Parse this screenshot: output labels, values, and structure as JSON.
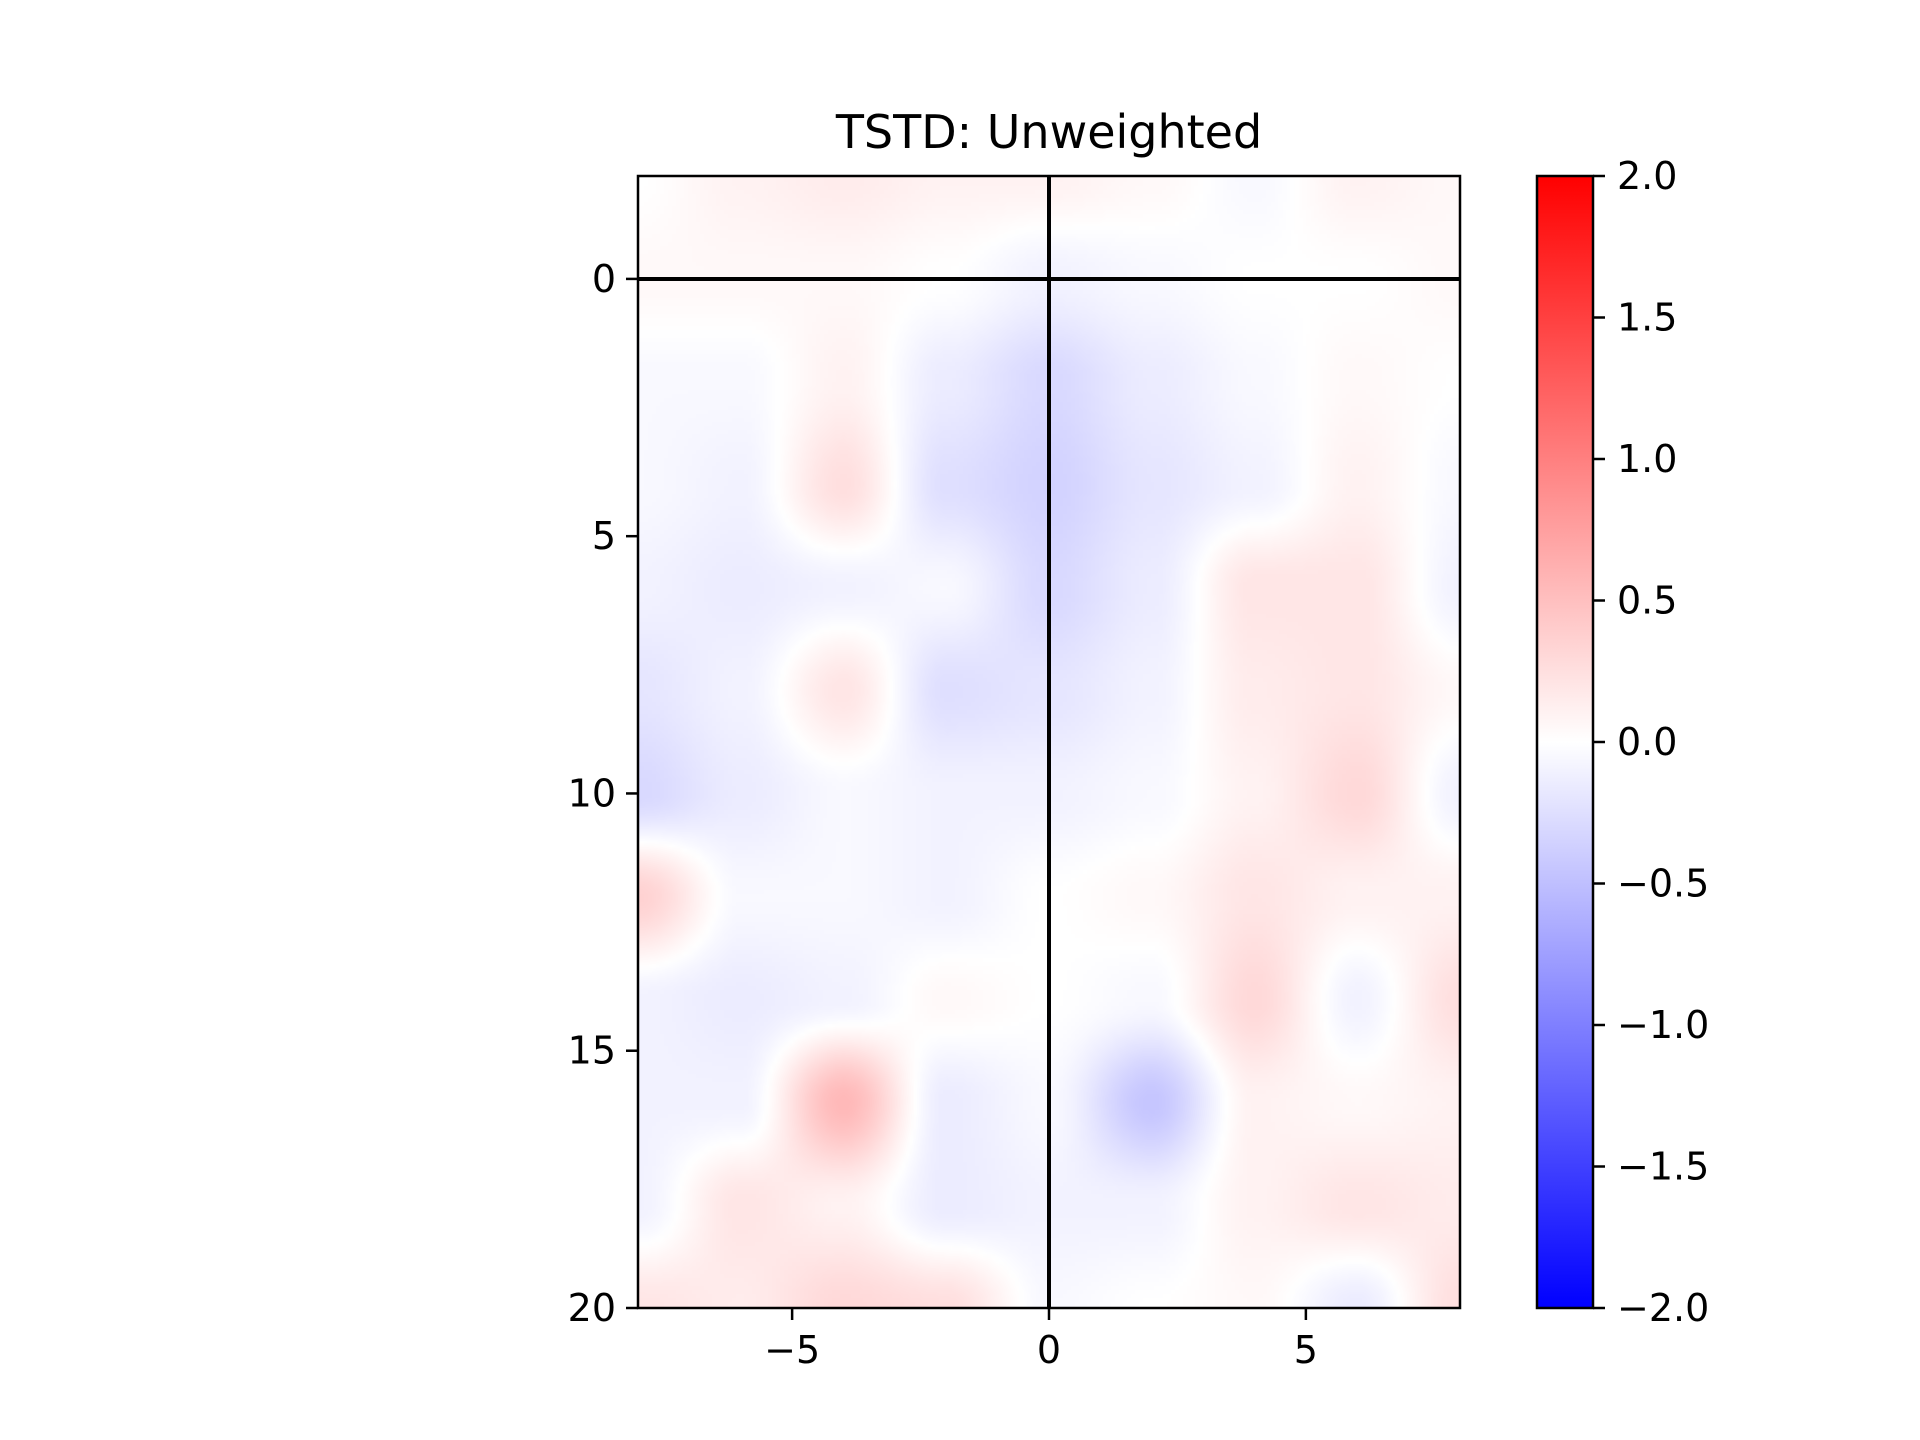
{
  "chart_data": {
    "type": "heatmap",
    "title": "TSTD: Unweighted",
    "xlabel": "",
    "ylabel": "",
    "xlim": [
      -8,
      8
    ],
    "ylim": [
      20,
      -2
    ],
    "y_inverted": true,
    "xticks": [
      -5,
      0,
      5
    ],
    "xtick_labels": [
      "−5",
      "0",
      "5"
    ],
    "yticks": [
      0,
      5,
      10,
      15,
      20
    ],
    "ytick_labels": [
      "0",
      "5",
      "10",
      "15",
      "20"
    ],
    "reference_lines": [
      {
        "orientation": "vertical",
        "value": 0,
        "color": "#000000"
      },
      {
        "orientation": "horizontal",
        "value": 0,
        "color": "#000000"
      }
    ],
    "colorbar": {
      "cmap": "bwr",
      "vmin": -2.0,
      "vmax": 2.0,
      "ticks": [
        2.0,
        1.5,
        1.0,
        0.5,
        0.0,
        -0.5,
        -1.0,
        -1.5,
        -2.0
      ],
      "tick_labels": [
        "2.0",
        "1.5",
        "1.0",
        "0.5",
        "0.0",
        "−0.5",
        "−1.0",
        "−1.5",
        "−2.0"
      ],
      "low_color": "#0000ff",
      "mid_color": "#ffffff",
      "high_color": "#ff0000"
    },
    "field_x": [
      -8,
      -6,
      -4,
      -2,
      0,
      2,
      4,
      6,
      8
    ],
    "field_y": [
      -2,
      0,
      2,
      4,
      6,
      8,
      10,
      12,
      14,
      16,
      18,
      20
    ],
    "field_values": [
      [
        0.0,
        0.1,
        0.15,
        0.1,
        0.1,
        0.05,
        -0.05,
        0.1,
        0.05
      ],
      [
        0.05,
        0.05,
        0.05,
        0.0,
        -0.1,
        -0.05,
        0.0,
        0.0,
        0.05
      ],
      [
        -0.05,
        -0.05,
        0.1,
        -0.15,
        -0.3,
        -0.15,
        -0.05,
        0.05,
        0.0
      ],
      [
        -0.05,
        -0.1,
        0.25,
        -0.25,
        -0.35,
        -0.2,
        -0.1,
        0.1,
        -0.05
      ],
      [
        -0.1,
        -0.15,
        -0.1,
        -0.05,
        -0.3,
        -0.15,
        0.2,
        0.2,
        -0.1
      ],
      [
        -0.2,
        -0.1,
        0.2,
        -0.25,
        -0.2,
        -0.1,
        0.15,
        0.2,
        0.05
      ],
      [
        -0.3,
        -0.15,
        -0.05,
        -0.1,
        -0.1,
        -0.05,
        0.1,
        0.3,
        -0.1
      ],
      [
        0.35,
        -0.05,
        -0.05,
        -0.1,
        0.0,
        0.05,
        0.2,
        0.1,
        0.1
      ],
      [
        -0.1,
        -0.15,
        -0.1,
        0.05,
        0.0,
        -0.05,
        0.3,
        -0.1,
        0.25
      ],
      [
        -0.1,
        -0.1,
        0.55,
        -0.15,
        -0.05,
        -0.45,
        0.1,
        0.05,
        0.1
      ],
      [
        -0.1,
        0.2,
        0.1,
        -0.15,
        -0.1,
        -0.1,
        0.1,
        0.2,
        0.15
      ],
      [
        0.2,
        0.15,
        0.3,
        0.25,
        -0.05,
        0.0,
        0.05,
        -0.15,
        0.25
      ]
    ]
  }
}
